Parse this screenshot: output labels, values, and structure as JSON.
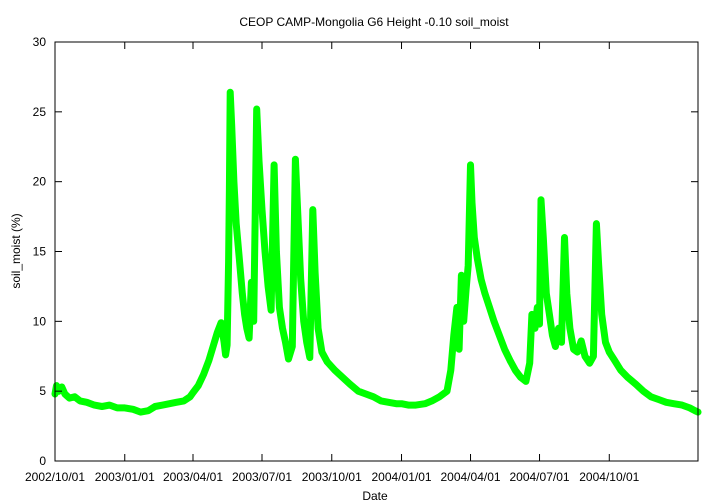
{
  "chart_data": {
    "type": "scatter",
    "title": "CEOP CAMP-Mongolia G6 Height -0.10 soil_moist",
    "xlabel": "Date",
    "ylabel": "soil_moist (%)",
    "xlim": [
      "2002-10-01",
      "2005-01-26"
    ],
    "ylim": [
      0,
      30
    ],
    "x_ticks": [
      "2002/10/01",
      "2003/01/01",
      "2003/04/01",
      "2003/07/01",
      "2003/10/01",
      "2004/01/01",
      "2004/04/01",
      "2004/07/01",
      "2004/10/01"
    ],
    "y_ticks": [
      0,
      5,
      10,
      15,
      20,
      25,
      30
    ],
    "grid": false,
    "series": [
      {
        "color": "#00ff00",
        "marker": "circle",
        "points": [
          [
            "2002-10-01",
            4.8
          ],
          [
            "2002-10-03",
            5.4
          ],
          [
            "2002-10-06",
            5.0
          ],
          [
            "2002-10-10",
            5.3
          ],
          [
            "2002-10-14",
            4.8
          ],
          [
            "2002-10-20",
            4.5
          ],
          [
            "2002-10-27",
            4.6
          ],
          [
            "2002-11-03",
            4.3
          ],
          [
            "2002-11-12",
            4.2
          ],
          [
            "2002-11-22",
            4.0
          ],
          [
            "2002-12-02",
            3.9
          ],
          [
            "2002-12-12",
            4.0
          ],
          [
            "2002-12-22",
            3.8
          ],
          [
            "2003-01-01",
            3.8
          ],
          [
            "2003-01-12",
            3.7
          ],
          [
            "2003-01-22",
            3.5
          ],
          [
            "2003-02-01",
            3.6
          ],
          [
            "2003-02-10",
            3.9
          ],
          [
            "2003-02-20",
            4.0
          ],
          [
            "2003-03-01",
            4.1
          ],
          [
            "2003-03-10",
            4.2
          ],
          [
            "2003-03-20",
            4.3
          ],
          [
            "2003-03-28",
            4.6
          ],
          [
            "2003-04-01",
            4.9
          ],
          [
            "2003-04-08",
            5.4
          ],
          [
            "2003-04-15",
            6.2
          ],
          [
            "2003-04-22",
            7.2
          ],
          [
            "2003-04-28",
            8.3
          ],
          [
            "2003-05-03",
            9.2
          ],
          [
            "2003-05-08",
            9.9
          ],
          [
            "2003-05-12",
            8.5
          ],
          [
            "2003-05-14",
            7.6
          ],
          [
            "2003-05-16",
            8.3
          ],
          [
            "2003-05-18",
            14.3
          ],
          [
            "2003-05-19",
            19.5
          ],
          [
            "2003-05-20",
            26.4
          ],
          [
            "2003-05-22",
            24.0
          ],
          [
            "2003-05-25",
            20.0
          ],
          [
            "2003-05-28",
            17.0
          ],
          [
            "2003-06-01",
            14.5
          ],
          [
            "2003-06-05",
            12.0
          ],
          [
            "2003-06-08",
            10.5
          ],
          [
            "2003-06-11",
            9.5
          ],
          [
            "2003-06-14",
            8.8
          ],
          [
            "2003-06-17",
            12.8
          ],
          [
            "2003-06-20",
            10.0
          ],
          [
            "2003-06-24",
            25.2
          ],
          [
            "2003-06-27",
            21.5
          ],
          [
            "2003-07-01",
            18.0
          ],
          [
            "2003-07-05",
            15.0
          ],
          [
            "2003-07-09",
            12.5
          ],
          [
            "2003-07-13",
            10.8
          ],
          [
            "2003-07-17",
            21.2
          ],
          [
            "2003-07-20",
            15.0
          ],
          [
            "2003-07-24",
            11.0
          ],
          [
            "2003-07-28",
            9.5
          ],
          [
            "2003-08-01",
            8.5
          ],
          [
            "2003-08-05",
            7.3
          ],
          [
            "2003-08-10",
            8.2
          ],
          [
            "2003-08-14",
            21.6
          ],
          [
            "2003-08-17",
            18.0
          ],
          [
            "2003-08-21",
            13.0
          ],
          [
            "2003-08-25",
            10.0
          ],
          [
            "2003-08-29",
            8.5
          ],
          [
            "2003-09-02",
            7.4
          ],
          [
            "2003-09-06",
            18.0
          ],
          [
            "2003-09-09",
            13.5
          ],
          [
            "2003-09-13",
            9.5
          ],
          [
            "2003-09-18",
            7.8
          ],
          [
            "2003-09-25",
            7.1
          ],
          [
            "2003-10-05",
            6.5
          ],
          [
            "2003-10-15",
            6.0
          ],
          [
            "2003-10-25",
            5.5
          ],
          [
            "2003-11-05",
            5.0
          ],
          [
            "2003-11-15",
            4.8
          ],
          [
            "2003-11-25",
            4.6
          ],
          [
            "2003-12-05",
            4.3
          ],
          [
            "2003-12-15",
            4.2
          ],
          [
            "2003-12-25",
            4.1
          ],
          [
            "2004-01-01",
            4.1
          ],
          [
            "2004-01-10",
            4.0
          ],
          [
            "2004-01-20",
            4.0
          ],
          [
            "2004-02-01",
            4.1
          ],
          [
            "2004-02-10",
            4.3
          ],
          [
            "2004-02-20",
            4.6
          ],
          [
            "2004-03-01",
            5.0
          ],
          [
            "2004-03-06",
            6.5
          ],
          [
            "2004-03-10",
            9.0
          ],
          [
            "2004-03-14",
            11.0
          ],
          [
            "2004-03-17",
            8.0
          ],
          [
            "2004-03-20",
            13.3
          ],
          [
            "2004-03-23",
            10.0
          ],
          [
            "2004-03-26",
            12.2
          ],
          [
            "2004-03-29",
            14.0
          ],
          [
            "2004-04-01",
            21.2
          ],
          [
            "2004-04-03",
            18.5
          ],
          [
            "2004-04-06",
            16.0
          ],
          [
            "2004-04-10",
            14.5
          ],
          [
            "2004-04-15",
            13.0
          ],
          [
            "2004-04-20",
            12.0
          ],
          [
            "2004-04-26",
            11.0
          ],
          [
            "2004-05-02",
            10.0
          ],
          [
            "2004-05-09",
            9.0
          ],
          [
            "2004-05-16",
            8.0
          ],
          [
            "2004-05-23",
            7.2
          ],
          [
            "2004-05-30",
            6.5
          ],
          [
            "2004-06-06",
            6.0
          ],
          [
            "2004-06-13",
            5.7
          ],
          [
            "2004-06-18",
            7.0
          ],
          [
            "2004-06-21",
            10.5
          ],
          [
            "2004-06-25",
            9.5
          ],
          [
            "2004-06-28",
            11.0
          ],
          [
            "2004-07-01",
            9.8
          ],
          [
            "2004-07-03",
            18.7
          ],
          [
            "2004-07-06",
            16.0
          ],
          [
            "2004-07-10",
            12.0
          ],
          [
            "2004-07-14",
            10.5
          ],
          [
            "2004-07-18",
            9.0
          ],
          [
            "2004-07-22",
            8.2
          ],
          [
            "2004-07-26",
            9.5
          ],
          [
            "2004-07-30",
            8.5
          ],
          [
            "2004-08-03",
            16.0
          ],
          [
            "2004-08-06",
            12.0
          ],
          [
            "2004-08-10",
            9.5
          ],
          [
            "2004-08-15",
            8.0
          ],
          [
            "2004-08-20",
            7.8
          ],
          [
            "2004-08-25",
            8.6
          ],
          [
            "2004-08-30",
            7.5
          ],
          [
            "2004-09-05",
            7.0
          ],
          [
            "2004-09-10",
            7.5
          ],
          [
            "2004-09-14",
            17.0
          ],
          [
            "2004-09-17",
            14.0
          ],
          [
            "2004-09-21",
            10.5
          ],
          [
            "2004-09-26",
            8.5
          ],
          [
            "2004-10-01",
            7.8
          ],
          [
            "2004-10-08",
            7.2
          ],
          [
            "2004-10-16",
            6.5
          ],
          [
            "2004-10-25",
            6.0
          ],
          [
            "2004-11-05",
            5.5
          ],
          [
            "2004-11-15",
            5.0
          ],
          [
            "2004-11-25",
            4.6
          ],
          [
            "2004-12-05",
            4.4
          ],
          [
            "2004-12-15",
            4.2
          ],
          [
            "2004-12-25",
            4.1
          ],
          [
            "2005-01-05",
            4.0
          ],
          [
            "2005-01-15",
            3.8
          ],
          [
            "2005-01-22",
            3.6
          ],
          [
            "2005-01-26",
            3.5
          ]
        ]
      }
    ]
  }
}
